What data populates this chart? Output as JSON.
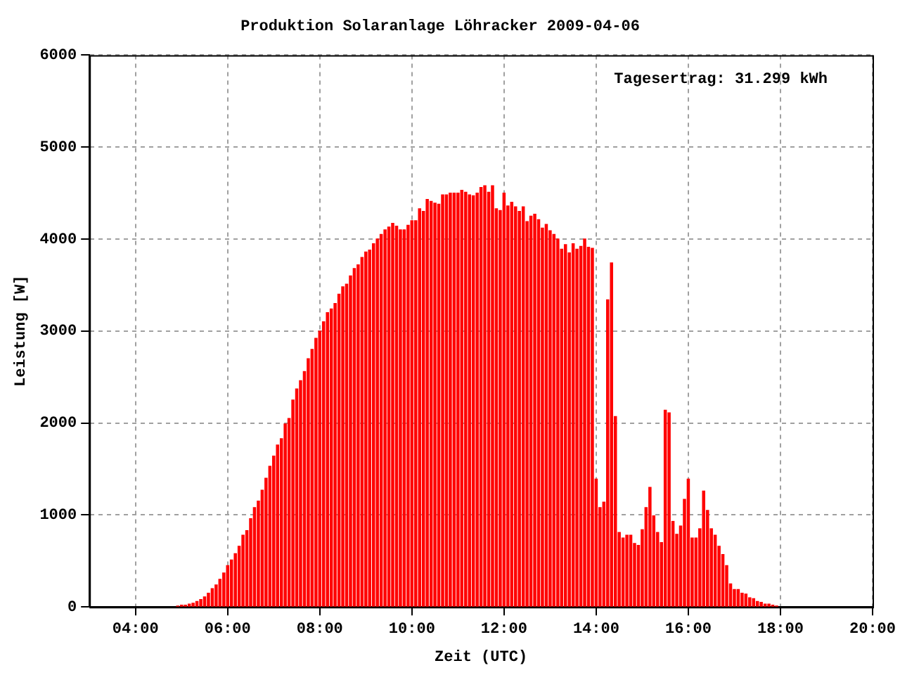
{
  "chart_data": {
    "type": "bar",
    "title": "Produktion Solaranlage Löhracker 2009-04-06",
    "xlabel": "Zeit (UTC)",
    "ylabel": "Leistung [W]",
    "annotations": [
      "Tagesertrag: 31.299 kWh"
    ],
    "grid": true,
    "legend": false,
    "xlim": [
      3,
      20
    ],
    "xticks": [
      {
        "value": 4,
        "label": "04:00"
      },
      {
        "value": 6,
        "label": "06:00"
      },
      {
        "value": 8,
        "label": "08:00"
      },
      {
        "value": 10,
        "label": "10:00"
      },
      {
        "value": 12,
        "label": "12:00"
      },
      {
        "value": 14,
        "label": "14:00"
      },
      {
        "value": 16,
        "label": "16:00"
      },
      {
        "value": 18,
        "label": "18:00"
      },
      {
        "value": 20,
        "label": "20:00"
      }
    ],
    "ylim": [
      0,
      6000
    ],
    "yticks": [
      0,
      1000,
      2000,
      3000,
      4000,
      5000,
      6000
    ],
    "series": [
      {
        "color": "#ff0000",
        "x": [
          4.917,
          5,
          5.083,
          5.167,
          5.25,
          5.333,
          5.417,
          5.5,
          5.583,
          5.667,
          5.75,
          5.833,
          5.917,
          6,
          6.083,
          6.167,
          6.25,
          6.333,
          6.417,
          6.5,
          6.583,
          6.667,
          6.75,
          6.833,
          6.917,
          7,
          7.083,
          7.167,
          7.25,
          7.333,
          7.417,
          7.5,
          7.583,
          7.667,
          7.75,
          7.833,
          7.917,
          8,
          8.083,
          8.167,
          8.25,
          8.333,
          8.417,
          8.5,
          8.583,
          8.667,
          8.75,
          8.833,
          8.917,
          9,
          9.083,
          9.167,
          9.25,
          9.333,
          9.417,
          9.5,
          9.583,
          9.667,
          9.75,
          9.833,
          9.917,
          10,
          10.083,
          10.167,
          10.25,
          10.333,
          10.417,
          10.5,
          10.583,
          10.667,
          10.75,
          10.833,
          10.917,
          11,
          11.083,
          11.167,
          11.25,
          11.333,
          11.417,
          11.5,
          11.583,
          11.667,
          11.75,
          11.833,
          11.917,
          12,
          12.083,
          12.167,
          12.25,
          12.333,
          12.417,
          12.5,
          12.583,
          12.667,
          12.75,
          12.833,
          12.917,
          13,
          13.083,
          13.167,
          13.25,
          13.333,
          13.417,
          13.5,
          13.583,
          13.667,
          13.75,
          13.833,
          13.917,
          14,
          14.083,
          14.167,
          14.25,
          14.333,
          14.417,
          14.5,
          14.583,
          14.667,
          14.75,
          14.833,
          14.917,
          15,
          15.083,
          15.167,
          15.25,
          15.333,
          15.417,
          15.5,
          15.583,
          15.667,
          15.75,
          15.833,
          15.917,
          16,
          16.083,
          16.167,
          16.25,
          16.333,
          16.417,
          16.5,
          16.583,
          16.667,
          16.75,
          16.833,
          16.917,
          17,
          17.083,
          17.167,
          17.25,
          17.333,
          17.417,
          17.5,
          17.583,
          17.667,
          17.75,
          17.833,
          17.917
        ],
        "values": [
          10,
          20,
          20,
          30,
          40,
          60,
          80,
          110,
          150,
          200,
          240,
          300,
          370,
          450,
          510,
          580,
          660,
          780,
          830,
          960,
          1080,
          1150,
          1270,
          1400,
          1530,
          1640,
          1760,
          1830,
          1990,
          2050,
          2250,
          2370,
          2460,
          2560,
          2700,
          2800,
          2920,
          3000,
          3100,
          3200,
          3240,
          3300,
          3400,
          3480,
          3510,
          3600,
          3680,
          3720,
          3800,
          3860,
          3880,
          3950,
          4000,
          4050,
          4100,
          4130,
          4170,
          4140,
          4100,
          4100,
          4150,
          4200,
          4200,
          4330,
          4300,
          4430,
          4410,
          4390,
          4380,
          4480,
          4480,
          4500,
          4500,
          4500,
          4530,
          4510,
          4480,
          4470,
          4500,
          4560,
          4580,
          4510,
          4580,
          4330,
          4310,
          4500,
          4360,
          4400,
          4350,
          4300,
          4350,
          4190,
          4250,
          4270,
          4210,
          4120,
          4160,
          4090,
          4050,
          4000,
          3890,
          3940,
          3850,
          3950,
          3890,
          3920,
          4000,
          3910,
          3900,
          1390,
          1080,
          1140,
          3340,
          3740,
          2070,
          810,
          750,
          780,
          780,
          690,
          670,
          840,
          1080,
          1300,
          990,
          810,
          700,
          2140,
          2110,
          930,
          790,
          880,
          1170,
          1390,
          750,
          750,
          850,
          1260,
          1050,
          850,
          780,
          660,
          570,
          450,
          250,
          190,
          190,
          150,
          140,
          100,
          90,
          60,
          50,
          30,
          30,
          20,
          10
        ]
      }
    ]
  }
}
